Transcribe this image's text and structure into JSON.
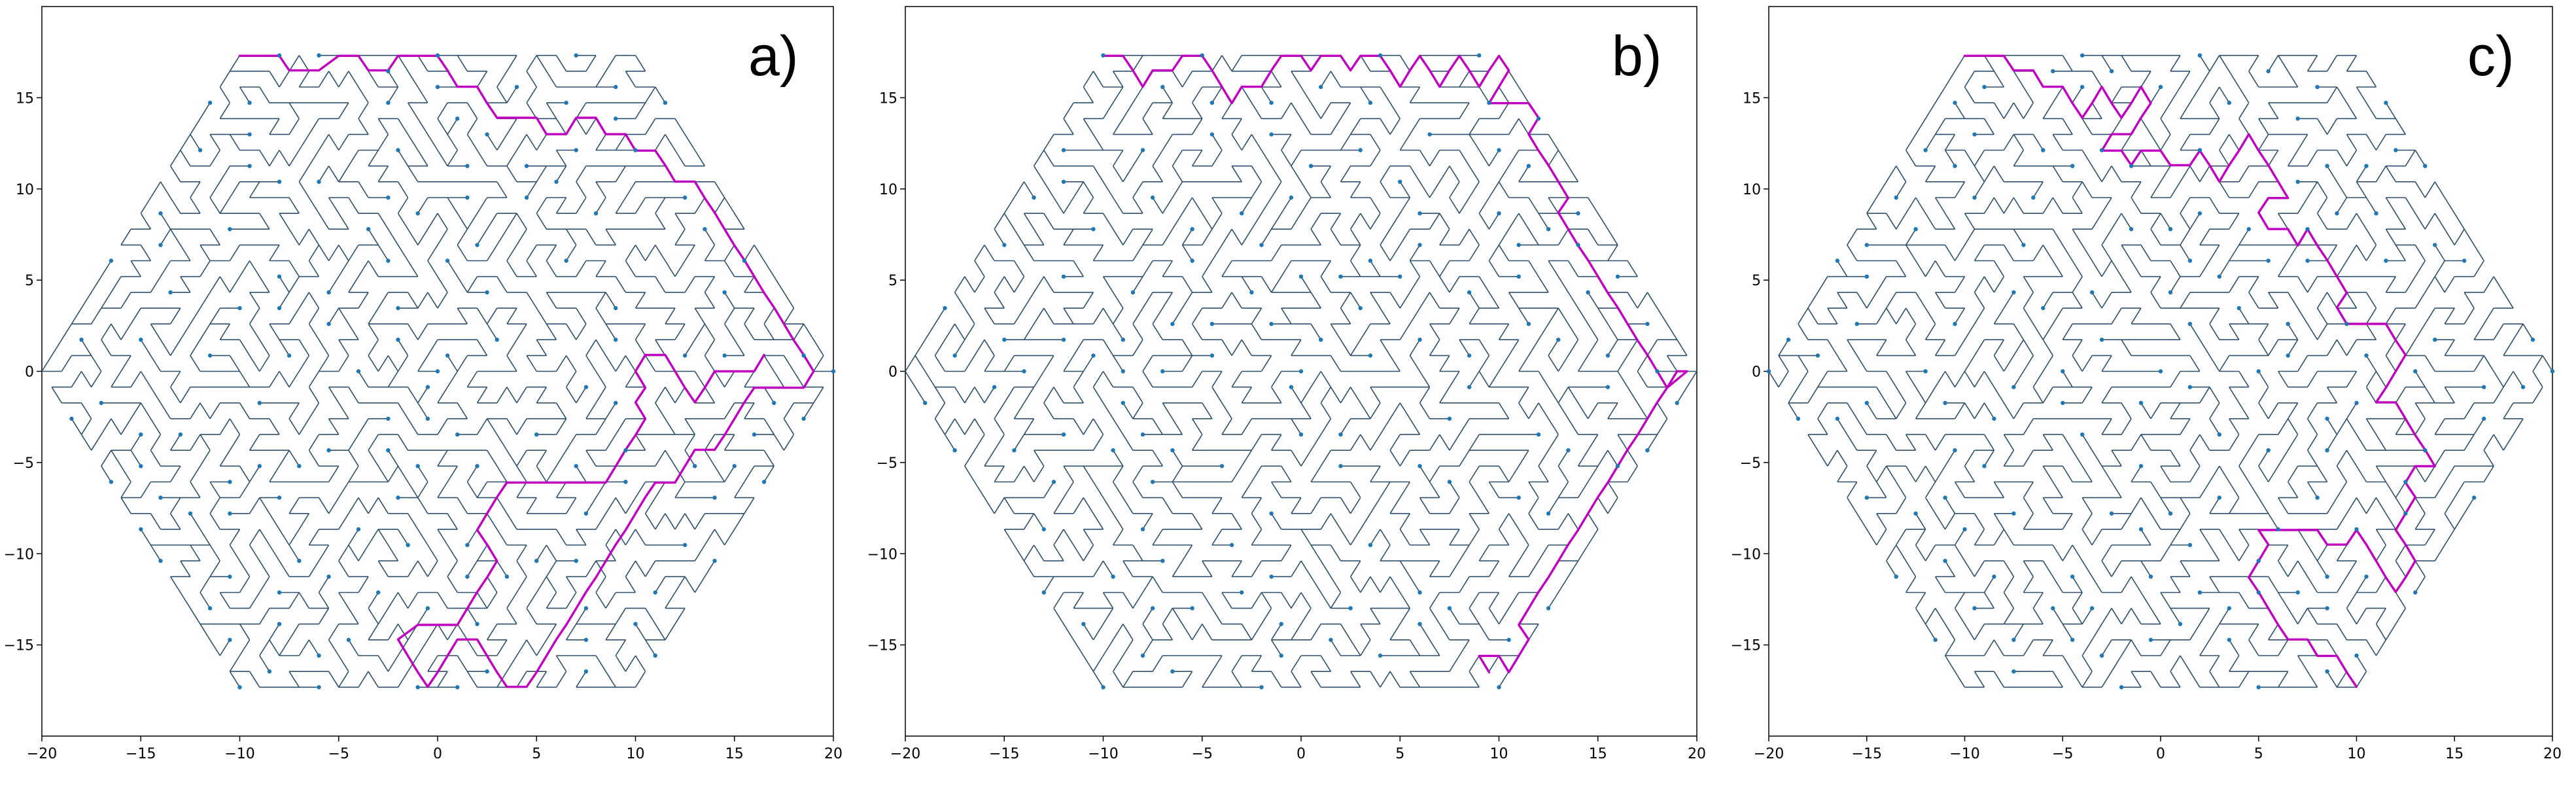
{
  "chart_data": [
    {
      "type": "network",
      "panel_label": "a)",
      "lattice": "triangular-hexagon",
      "radius": 20,
      "xlim": [
        -20,
        20
      ],
      "ylim": [
        -20,
        20
      ],
      "xticks": [
        -20,
        -15,
        -10,
        -5,
        0,
        5,
        10,
        15,
        20
      ],
      "yticks": [
        -15,
        -10,
        -5,
        0,
        5,
        10,
        15
      ],
      "grid": false,
      "colors": {
        "tree": "#2d4f6b",
        "node": "#1f77b4",
        "path": "#c000c0"
      },
      "seed": 11,
      "path": [
        [
          -10,
          17.3
        ],
        [
          -9,
          17.3
        ],
        [
          -8,
          17.3
        ],
        [
          -7.5,
          16.5
        ],
        [
          -6,
          16.5
        ],
        [
          -5,
          17.3
        ],
        [
          -4,
          17.3
        ],
        [
          -3.5,
          16.5
        ],
        [
          -2.5,
          16.5
        ],
        [
          -2,
          17.3
        ],
        [
          -1,
          17.3
        ],
        [
          0,
          17.3
        ],
        [
          0.5,
          16.5
        ],
        [
          1,
          15.6
        ],
        [
          2,
          15.6
        ],
        [
          2.5,
          14.7
        ],
        [
          3,
          13.9
        ],
        [
          4,
          13.9
        ],
        [
          5,
          13.9
        ],
        [
          5.5,
          13
        ],
        [
          6.5,
          13
        ],
        [
          7,
          13.9
        ],
        [
          8,
          13.9
        ],
        [
          8.5,
          13
        ],
        [
          9.5,
          13
        ],
        [
          10,
          12.1
        ],
        [
          11,
          12.1
        ],
        [
          11.5,
          11.3
        ],
        [
          12,
          10.4
        ],
        [
          13,
          10.4
        ],
        [
          13.5,
          9.5
        ],
        [
          14,
          8.7
        ],
        [
          14.5,
          7.8
        ],
        [
          15,
          6.9
        ],
        [
          15.5,
          6.1
        ],
        [
          16,
          5.2
        ],
        [
          16.5,
          4.3
        ],
        [
          17,
          3.5
        ],
        [
          17.5,
          2.6
        ],
        [
          18,
          1.7
        ],
        [
          18.5,
          0.9
        ],
        [
          19,
          0
        ],
        [
          18.5,
          -0.9
        ],
        [
          17,
          -0.9
        ],
        [
          16,
          -0.9
        ],
        [
          15.5,
          -1.7
        ],
        [
          15,
          -2.6
        ],
        [
          14.5,
          -3.5
        ],
        [
          14,
          -4.3
        ],
        [
          13,
          -4.3
        ],
        [
          12.5,
          -5.2
        ],
        [
          12,
          -6.1
        ],
        [
          11,
          -6.1
        ],
        [
          10.5,
          -6.9
        ],
        [
          10,
          -7.8
        ],
        [
          9.5,
          -8.7
        ],
        [
          9,
          -9.5
        ],
        [
          8.5,
          -10.4
        ],
        [
          8,
          -11.3
        ],
        [
          7.5,
          -12.1
        ],
        [
          7,
          -13
        ],
        [
          6.5,
          -13.9
        ],
        [
          6,
          -14.7
        ],
        [
          5.5,
          -15.6
        ],
        [
          5,
          -16.5
        ],
        [
          4.5,
          -17.3
        ],
        [
          3.5,
          -17.3
        ],
        [
          3,
          -16.5
        ],
        [
          2.5,
          -15.6
        ],
        [
          2,
          -14.7
        ],
        [
          1,
          -14.7
        ],
        [
          0.5,
          -15.6
        ],
        [
          0,
          -16.5
        ],
        [
          -0.5,
          -17.3
        ],
        [
          -1,
          -16.5
        ],
        [
          -1.5,
          -15.6
        ],
        [
          -2,
          -14.7
        ],
        [
          -1,
          -13.9
        ],
        [
          0,
          -13.9
        ],
        [
          1,
          -13.9
        ],
        [
          1.5,
          -13
        ],
        [
          2,
          -12.1
        ],
        [
          2.5,
          -11.3
        ],
        [
          3,
          -10.4
        ],
        [
          2.5,
          -9.5
        ],
        [
          2,
          -8.7
        ],
        [
          2.5,
          -7.8
        ],
        [
          3,
          -6.9
        ],
        [
          3.5,
          -6.1
        ],
        [
          4.5,
          -6.1
        ],
        [
          5.5,
          -6.1
        ],
        [
          6.5,
          -6.1
        ],
        [
          7.5,
          -6.1
        ],
        [
          8.5,
          -6.1
        ],
        [
          9,
          -5.2
        ],
        [
          9.5,
          -4.3
        ],
        [
          10,
          -3.5
        ],
        [
          10.5,
          -2.6
        ],
        [
          10,
          -1.7
        ],
        [
          10.5,
          -0.9
        ],
        [
          10,
          0
        ],
        [
          10.5,
          0.9
        ],
        [
          11.5,
          0.9
        ],
        [
          12,
          0
        ],
        [
          12.5,
          -0.9
        ],
        [
          13,
          -1.7
        ],
        [
          13.5,
          -0.9
        ],
        [
          14,
          0
        ],
        [
          15,
          0
        ],
        [
          16,
          0
        ],
        [
          16.5,
          0.9
        ]
      ]
    },
    {
      "type": "network",
      "panel_label": "b)",
      "lattice": "triangular-hexagon",
      "radius": 20,
      "xlim": [
        -20,
        20
      ],
      "ylim": [
        -20,
        20
      ],
      "xticks": [
        -20,
        -15,
        -10,
        -5,
        0,
        5,
        10,
        15,
        20
      ],
      "yticks": [
        -15,
        -10,
        -5,
        0,
        5,
        10,
        15
      ],
      "grid": false,
      "colors": {
        "tree": "#2d4f6b",
        "node": "#1f77b4",
        "path": "#c000c0"
      },
      "seed": 23,
      "path": [
        [
          -10,
          17.3
        ],
        [
          -9,
          17.3
        ],
        [
          -8.5,
          16.5
        ],
        [
          -8,
          15.6
        ],
        [
          -7.5,
          16.5
        ],
        [
          -6.5,
          16.5
        ],
        [
          -6,
          17.3
        ],
        [
          -5,
          17.3
        ],
        [
          -4.5,
          16.5
        ],
        [
          -4,
          15.6
        ],
        [
          -3.5,
          14.7
        ],
        [
          -3,
          15.6
        ],
        [
          -2,
          15.6
        ],
        [
          -1.5,
          16.5
        ],
        [
          -1,
          17.3
        ],
        [
          0,
          17.3
        ],
        [
          0.5,
          16.5
        ],
        [
          1,
          17.3
        ],
        [
          2,
          17.3
        ],
        [
          2.5,
          16.5
        ],
        [
          3,
          17.3
        ],
        [
          4,
          17.3
        ],
        [
          4.5,
          16.5
        ],
        [
          5,
          15.6
        ],
        [
          5.5,
          16.5
        ],
        [
          6,
          17.3
        ],
        [
          6.5,
          16.5
        ],
        [
          7,
          15.6
        ],
        [
          7.5,
          16.5
        ],
        [
          8,
          17.3
        ],
        [
          8.5,
          16.5
        ],
        [
          9,
          15.6
        ],
        [
          9.5,
          16.5
        ],
        [
          10,
          17.3
        ],
        [
          10.5,
          16.5
        ],
        [
          10,
          15.6
        ],
        [
          9.5,
          14.7
        ],
        [
          10.5,
          14.7
        ],
        [
          11.5,
          14.7
        ],
        [
          12,
          13.9
        ],
        [
          11.5,
          13
        ],
        [
          12,
          12.1
        ],
        [
          12.5,
          11.3
        ],
        [
          13,
          10.4
        ],
        [
          13.5,
          9.5
        ],
        [
          13,
          8.7
        ],
        [
          13.5,
          7.8
        ],
        [
          14,
          6.9
        ],
        [
          14.5,
          6.1
        ],
        [
          15,
          5.2
        ],
        [
          15.5,
          4.3
        ],
        [
          16,
          3.5
        ],
        [
          16.5,
          2.6
        ],
        [
          17,
          1.7
        ],
        [
          17.5,
          0.9
        ],
        [
          18,
          0
        ],
        [
          18.5,
          -0.9
        ],
        [
          19,
          0
        ],
        [
          19.5,
          0
        ],
        [
          18.5,
          -0.9
        ],
        [
          18,
          -1.7
        ],
        [
          17.5,
          -2.6
        ],
        [
          17,
          -3.5
        ],
        [
          16.5,
          -4.3
        ],
        [
          16,
          -5.2
        ],
        [
          15.5,
          -6.1
        ],
        [
          15,
          -6.9
        ],
        [
          14.5,
          -7.8
        ],
        [
          14,
          -8.7
        ],
        [
          13.5,
          -9.5
        ],
        [
          13,
          -10.4
        ],
        [
          12.5,
          -11.3
        ],
        [
          12,
          -12.1
        ],
        [
          11.5,
          -13
        ],
        [
          11,
          -13.9
        ],
        [
          11.5,
          -14.7
        ],
        [
          11,
          -15.6
        ],
        [
          10.5,
          -16.5
        ],
        [
          10,
          -15.6
        ],
        [
          9,
          -15.6
        ],
        [
          9.5,
          -16.5
        ]
      ]
    },
    {
      "type": "network",
      "panel_label": "c)",
      "lattice": "triangular-hexagon",
      "radius": 20,
      "xlim": [
        -20,
        20
      ],
      "ylim": [
        -20,
        20
      ],
      "xticks": [
        -20,
        -15,
        -10,
        -5,
        0,
        5,
        10,
        15,
        20
      ],
      "yticks": [
        -15,
        -10,
        -5,
        0,
        5,
        10,
        15
      ],
      "grid": false,
      "colors": {
        "tree": "#2d4f6b",
        "node": "#1f77b4",
        "path": "#c000c0"
      },
      "seed": 37,
      "path": [
        [
          -10,
          17.3
        ],
        [
          -9,
          17.3
        ],
        [
          -8,
          17.3
        ],
        [
          -7.5,
          16.5
        ],
        [
          -6.5,
          16.5
        ],
        [
          -6,
          15.6
        ],
        [
          -5,
          15.6
        ],
        [
          -4.5,
          14.7
        ],
        [
          -4,
          13.9
        ],
        [
          -3.5,
          14.7
        ],
        [
          -3,
          15.6
        ],
        [
          -2.5,
          14.7
        ],
        [
          -2,
          13.9
        ],
        [
          -1.5,
          14.7
        ],
        [
          -1,
          15.6
        ],
        [
          -0.5,
          14.7
        ],
        [
          -1,
          13.9
        ],
        [
          -1.5,
          13
        ],
        [
          -2.5,
          13
        ],
        [
          -3,
          12.1
        ],
        [
          -2,
          12.1
        ],
        [
          -1.5,
          11.3
        ],
        [
          -1,
          12.1
        ],
        [
          0,
          12.1
        ],
        [
          0.5,
          11.3
        ],
        [
          1.5,
          11.3
        ],
        [
          2,
          12.1
        ],
        [
          2.5,
          11.3
        ],
        [
          3,
          10.4
        ],
        [
          3.5,
          11.3
        ],
        [
          4,
          12.1
        ],
        [
          4.5,
          13
        ],
        [
          5,
          12.1
        ],
        [
          5.5,
          11.3
        ],
        [
          6,
          10.4
        ],
        [
          6.5,
          9.5
        ],
        [
          5.5,
          9.5
        ],
        [
          5,
          8.7
        ],
        [
          5.5,
          7.8
        ],
        [
          6.5,
          7.8
        ],
        [
          7,
          6.9
        ],
        [
          7.5,
          7.8
        ],
        [
          8,
          6.9
        ],
        [
          8.5,
          6.1
        ],
        [
          9,
          5.2
        ],
        [
          9.5,
          4.3
        ],
        [
          9,
          3.5
        ],
        [
          9.5,
          2.6
        ],
        [
          10.5,
          2.6
        ],
        [
          11.5,
          2.6
        ],
        [
          12,
          1.7
        ],
        [
          12.5,
          0.9
        ],
        [
          12,
          0
        ],
        [
          11.5,
          -0.9
        ],
        [
          11,
          -1.7
        ],
        [
          12,
          -1.7
        ],
        [
          12.5,
          -2.6
        ],
        [
          13,
          -3.5
        ],
        [
          13.5,
          -4.3
        ],
        [
          14,
          -5.2
        ],
        [
          13,
          -5.2
        ],
        [
          12.5,
          -6.1
        ],
        [
          13,
          -6.9
        ],
        [
          12.5,
          -7.8
        ],
        [
          12,
          -8.7
        ],
        [
          12.5,
          -9.5
        ],
        [
          13,
          -10.4
        ],
        [
          12.5,
          -11.3
        ],
        [
          12,
          -12.1
        ],
        [
          11.5,
          -11.3
        ],
        [
          11,
          -10.4
        ],
        [
          10.5,
          -9.5
        ],
        [
          10,
          -8.7
        ],
        [
          9.5,
          -9.5
        ],
        [
          8.5,
          -9.5
        ],
        [
          8,
          -8.7
        ],
        [
          7.5,
          -8.7
        ],
        [
          6,
          -8.7
        ],
        [
          5,
          -8.7
        ],
        [
          5.5,
          -9.5
        ],
        [
          5,
          -10.4
        ],
        [
          4.5,
          -11.3
        ],
        [
          5,
          -12.1
        ],
        [
          5.5,
          -13
        ],
        [
          6,
          -13.9
        ],
        [
          6.5,
          -14.7
        ],
        [
          7.5,
          -14.7
        ],
        [
          8,
          -15.6
        ],
        [
          9,
          -15.6
        ],
        [
          9.5,
          -16.5
        ],
        [
          10,
          -17.3
        ]
      ]
    }
  ]
}
